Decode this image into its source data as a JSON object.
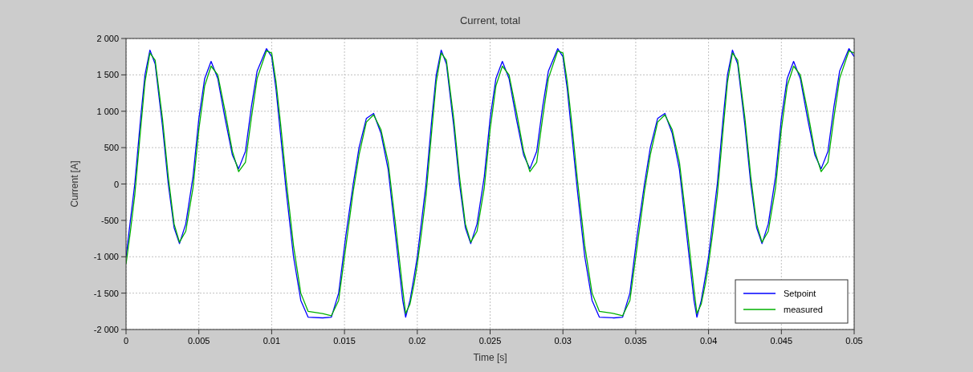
{
  "chart_data": {
    "type": "line",
    "title": "Current, total",
    "xlabel": "Time [s]",
    "ylabel": "Current [A]",
    "x": [
      0,
      0.0003,
      0.0006,
      0.001,
      0.0013,
      0.00164,
      0.002,
      0.0025,
      0.0029,
      0.0033,
      0.00367,
      0.0041,
      0.0046,
      0.005,
      0.0054,
      0.00584,
      0.0063,
      0.0068,
      0.0073,
      0.00773,
      0.0082,
      0.0086,
      0.009,
      0.00964,
      0.01,
      0.0103,
      0.0106,
      0.011,
      0.0115,
      0.012,
      0.0125,
      0.0135,
      0.0141,
      0.0146,
      0.0151,
      0.0156,
      0.016,
      0.0165,
      0.017,
      0.0175,
      0.018,
      0.0185,
      0.019,
      0.0192,
      0.0195,
      0.0198,
      0.02,
      0.0203,
      0.0206,
      0.021,
      0.0213,
      0.02164,
      0.022,
      0.0225,
      0.0229,
      0.0233,
      0.02367,
      0.0241,
      0.0246,
      0.025,
      0.0254,
      0.02584,
      0.0263,
      0.0268,
      0.0273,
      0.02773,
      0.0282,
      0.0286,
      0.029,
      0.02964,
      0.03,
      0.0303,
      0.0306,
      0.031,
      0.0315,
      0.032,
      0.0325,
      0.0335,
      0.0341,
      0.0346,
      0.0351,
      0.0356,
      0.036,
      0.0365,
      0.037,
      0.0375,
      0.038,
      0.0385,
      0.039,
      0.0392,
      0.0395,
      0.0398,
      0.04,
      0.0403,
      0.0406,
      0.041,
      0.0413,
      0.04164,
      0.042,
      0.0425,
      0.0429,
      0.0433,
      0.04367,
      0.0441,
      0.0446,
      0.045,
      0.0454,
      0.04584,
      0.0463,
      0.0468,
      0.0473,
      0.04773,
      0.0482,
      0.0486,
      0.049,
      0.04964,
      0.05
    ],
    "series": [
      {
        "name": "Setpoint",
        "color": "#0000ff",
        "values": [
          -1000,
          -500,
          0,
          900,
          1500,
          1840,
          1650,
          800,
          0,
          -600,
          -820,
          -550,
          100,
          900,
          1450,
          1685,
          1450,
          900,
          400,
          208,
          450,
          1050,
          1550,
          1860,
          1750,
          1300,
          700,
          -100,
          -1000,
          -1600,
          -1830,
          -1840,
          -1830,
          -1500,
          -700,
          0,
          500,
          900,
          970,
          700,
          200,
          -700,
          -1600,
          -1830,
          -1600,
          -1250,
          -1000,
          -500,
          0,
          900,
          1500,
          1840,
          1650,
          800,
          0,
          -600,
          -820,
          -550,
          100,
          900,
          1450,
          1685,
          1450,
          900,
          400,
          208,
          450,
          1050,
          1550,
          1860,
          1750,
          1300,
          700,
          -100,
          -1000,
          -1600,
          -1830,
          -1840,
          -1830,
          -1500,
          -700,
          0,
          500,
          900,
          970,
          700,
          200,
          -700,
          -1600,
          -1830,
          -1600,
          -1250,
          -1000,
          -500,
          0,
          900,
          1500,
          1840,
          1650,
          800,
          0,
          -600,
          -820,
          -550,
          100,
          900,
          1450,
          1685,
          1450,
          900,
          400,
          208,
          450,
          1050,
          1550,
          1860,
          1750
        ]
      },
      {
        "name": "measured",
        "color": "#00b000",
        "values": [
          -1100,
          -650,
          -150,
          750,
          1400,
          1800,
          1700,
          900,
          100,
          -550,
          -800,
          -650,
          -50,
          750,
          1350,
          1620,
          1500,
          1000,
          450,
          170,
          300,
          900,
          1450,
          1830,
          1800,
          1400,
          850,
          50,
          -850,
          -1500,
          -1750,
          -1780,
          -1810,
          -1600,
          -850,
          -100,
          400,
          850,
          950,
          750,
          300,
          -550,
          -1450,
          -1780,
          -1650,
          -1350,
          -1100,
          -650,
          -150,
          750,
          1400,
          1800,
          1700,
          900,
          100,
          -550,
          -800,
          -650,
          -50,
          750,
          1350,
          1620,
          1500,
          1000,
          450,
          170,
          300,
          900,
          1450,
          1830,
          1800,
          1400,
          850,
          50,
          -850,
          -1500,
          -1750,
          -1780,
          -1810,
          -1600,
          -850,
          -100,
          400,
          850,
          950,
          750,
          300,
          -550,
          -1450,
          -1780,
          -1650,
          -1350,
          -1100,
          -650,
          -150,
          750,
          1400,
          1800,
          1700,
          900,
          100,
          -550,
          -800,
          -650,
          -50,
          750,
          1350,
          1620,
          1500,
          1000,
          450,
          170,
          300,
          900,
          1450,
          1830,
          1800
        ]
      }
    ],
    "xlim": [
      0,
      0.05
    ],
    "xticks": [
      0,
      0.005,
      0.01,
      0.015,
      0.02,
      0.025,
      0.03,
      0.035,
      0.04,
      0.045,
      0.05
    ],
    "ylim": [
      -2000,
      2000
    ],
    "yticks": [
      {
        "value": -2000,
        "label": "-2 000"
      },
      {
        "value": -1500,
        "label": "-1 500"
      },
      {
        "value": -1000,
        "label": "-1 000"
      },
      -500,
      0,
      500,
      {
        "value": 1000,
        "label": "1 000"
      },
      {
        "value": 1500,
        "label": "1 500"
      },
      {
        "value": 2000,
        "label": "2 000"
      }
    ],
    "grid": true,
    "legend": "bottom right",
    "marker": "none",
    "line_style": "solid"
  }
}
